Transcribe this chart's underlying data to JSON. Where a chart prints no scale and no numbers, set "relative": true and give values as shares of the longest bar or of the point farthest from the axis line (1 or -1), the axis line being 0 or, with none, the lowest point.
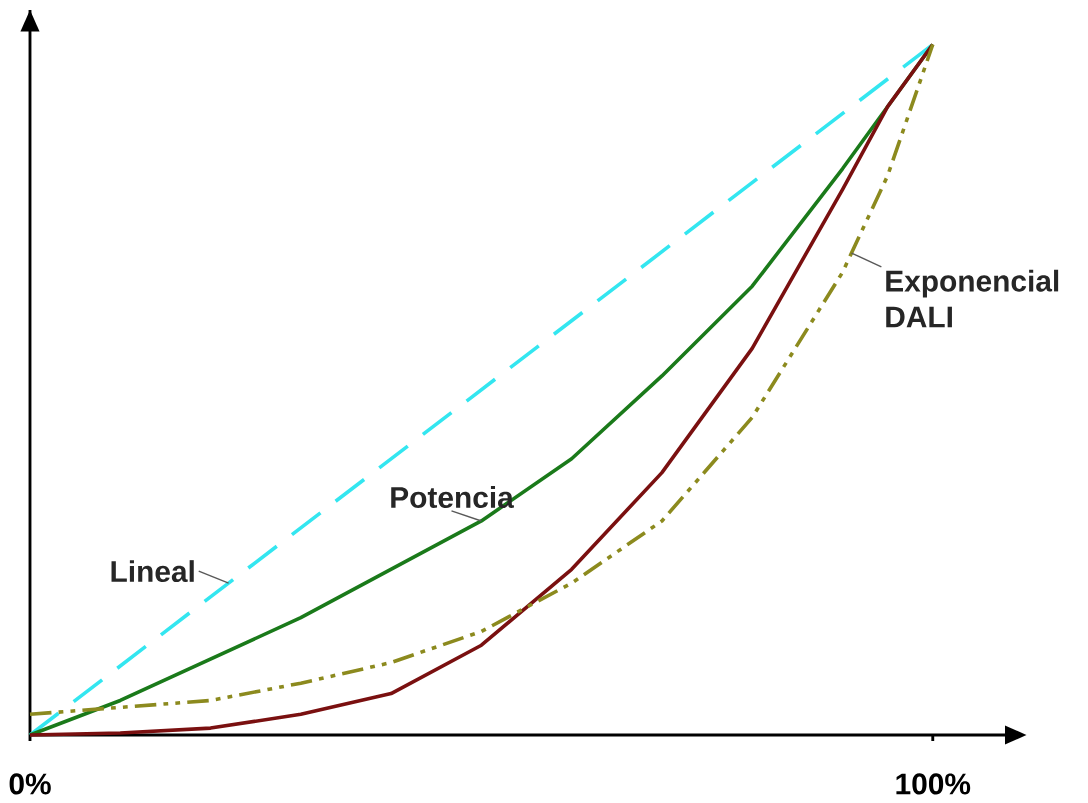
{
  "chart_data": {
    "type": "line",
    "relative": true,
    "xlim": [
      0,
      108
    ],
    "xticks": [
      {
        "value": 0,
        "label": "0%"
      },
      {
        "value": 100,
        "label": "100%"
      }
    ],
    "marker": "none",
    "series": [
      {
        "name": "Lineal",
        "color": "#33e6f0",
        "line_style": "dashed",
        "x": [
          0,
          100
        ],
        "values": [
          0,
          1
        ]
      },
      {
        "name": "Potencia",
        "color": "#1a7a1a",
        "line_style": "solid",
        "x": [
          0,
          10,
          20,
          30,
          40,
          50,
          60,
          70,
          80,
          90,
          100
        ],
        "values": [
          0,
          0.05,
          0.11,
          0.17,
          0.24,
          0.31,
          0.4,
          0.52,
          0.65,
          0.82,
          1
        ]
      },
      {
        "color": "#7a1010",
        "line_style": "solid",
        "x": [
          0,
          10,
          20,
          30,
          40,
          50,
          60,
          70,
          80,
          90,
          95,
          100
        ],
        "values": [
          0,
          0.003,
          0.01,
          0.03,
          0.06,
          0.13,
          0.24,
          0.38,
          0.56,
          0.79,
          0.91,
          1
        ]
      },
      {
        "name": "Exponencial DALI",
        "color": "#8c8a1e",
        "line_style": "dashdot",
        "x": [
          0,
          10,
          20,
          30,
          40,
          50,
          60,
          70,
          80,
          90,
          95,
          100
        ],
        "values": [
          0.03,
          0.04,
          0.05,
          0.075,
          0.105,
          0.15,
          0.22,
          0.31,
          0.46,
          0.67,
          0.81,
          1
        ]
      }
    ]
  }
}
